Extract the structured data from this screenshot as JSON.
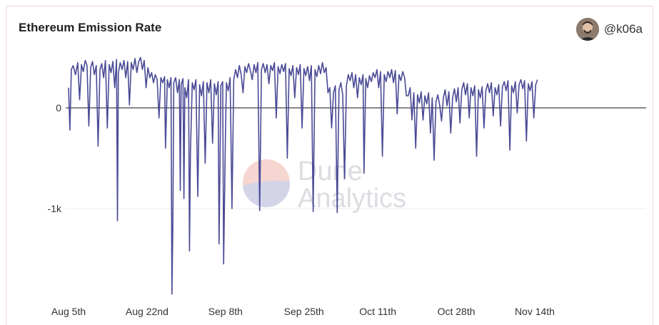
{
  "header": {
    "title": "Ethereum Emission Rate",
    "author": "@k06a"
  },
  "watermark": {
    "line1": "Dune",
    "line2": "Analytics"
  },
  "colors": {
    "series": "#4a4a96",
    "zero_line": "#111111",
    "grid": "#ececec"
  },
  "chart_data": {
    "type": "line",
    "title": "Ethereum Emission Rate",
    "xlabel": "",
    "ylabel": "",
    "ylim": [
      -1850,
      520
    ],
    "y_ticks": [
      0,
      -1000
    ],
    "y_tick_labels": [
      "0",
      "-1k"
    ],
    "x_ticks": [
      "Aug 5th",
      "Aug 22nd",
      "Sep 8th",
      "Sep 25th",
      "Oct 11th",
      "Oct 28th",
      "Nov 14th"
    ],
    "x_tick_days": [
      0,
      17,
      34,
      51,
      67,
      84,
      101
    ],
    "grid": true,
    "legend": "none",
    "series": [
      {
        "points": [
          [
            0.0,
            200
          ],
          [
            0.3,
            -220
          ],
          [
            0.6,
            380
          ],
          [
            1.0,
            420
          ],
          [
            1.5,
            330
          ],
          [
            2.0,
            450
          ],
          [
            2.4,
            80
          ],
          [
            2.8,
            430
          ],
          [
            3.2,
            360
          ],
          [
            3.6,
            470
          ],
          [
            4.0,
            420
          ],
          [
            4.4,
            -180
          ],
          [
            4.8,
            400
          ],
          [
            5.2,
            460
          ],
          [
            5.6,
            330
          ],
          [
            6.0,
            420
          ],
          [
            6.4,
            -380
          ],
          [
            6.8,
            380
          ],
          [
            7.2,
            440
          ],
          [
            7.6,
            300
          ],
          [
            8.0,
            470
          ],
          [
            8.4,
            -200
          ],
          [
            8.8,
            430
          ],
          [
            9.2,
            350
          ],
          [
            9.6,
            460
          ],
          [
            10.0,
            200
          ],
          [
            10.4,
            480
          ],
          [
            10.6,
            -1120
          ],
          [
            10.8,
            350
          ],
          [
            11.2,
            450
          ],
          [
            11.6,
            380
          ],
          [
            12.0,
            470
          ],
          [
            12.4,
            300
          ],
          [
            12.8,
            460
          ],
          [
            13.2,
            30
          ],
          [
            13.6,
            450
          ],
          [
            14.0,
            380
          ],
          [
            14.4,
            490
          ],
          [
            14.8,
            350
          ],
          [
            15.2,
            460
          ],
          [
            15.6,
            500
          ],
          [
            16.0,
            380
          ],
          [
            16.4,
            470
          ],
          [
            16.8,
            200
          ],
          [
            17.2,
            400
          ],
          [
            17.6,
            300
          ],
          [
            18.0,
            350
          ],
          [
            18.4,
            250
          ],
          [
            18.8,
            330
          ],
          [
            19.2,
            280
          ],
          [
            19.6,
            -100
          ],
          [
            20.0,
            300
          ],
          [
            20.4,
            250
          ],
          [
            20.8,
            310
          ],
          [
            21.0,
            -400
          ],
          [
            21.4,
            280
          ],
          [
            21.8,
            200
          ],
          [
            22.2,
            300
          ],
          [
            22.4,
            -1850
          ],
          [
            22.6,
            -1150
          ],
          [
            22.8,
            250
          ],
          [
            23.2,
            300
          ],
          [
            23.6,
            150
          ],
          [
            24.0,
            280
          ],
          [
            24.2,
            -820
          ],
          [
            24.4,
            230
          ],
          [
            24.8,
            290
          ],
          [
            25.0,
            -900
          ],
          [
            25.2,
            200
          ],
          [
            25.6,
            100
          ],
          [
            26.0,
            280
          ],
          [
            26.2,
            -1420
          ],
          [
            26.4,
            -450
          ],
          [
            26.8,
            250
          ],
          [
            27.2,
            180
          ],
          [
            27.6,
            280
          ],
          [
            28.0,
            -880
          ],
          [
            28.4,
            230
          ],
          [
            28.8,
            120
          ],
          [
            29.2,
            260
          ],
          [
            29.6,
            -550
          ],
          [
            30.0,
            250
          ],
          [
            30.4,
            150
          ],
          [
            30.8,
            280
          ],
          [
            31.2,
            -350
          ],
          [
            31.6,
            240
          ],
          [
            32.0,
            130
          ],
          [
            32.4,
            260
          ],
          [
            32.6,
            -1350
          ],
          [
            32.8,
            -600
          ],
          [
            33.0,
            220
          ],
          [
            33.4,
            260
          ],
          [
            33.6,
            -1550
          ],
          [
            34.0,
            -250
          ],
          [
            34.2,
            250
          ],
          [
            34.6,
            170
          ],
          [
            35.0,
            300
          ],
          [
            35.4,
            -1000
          ],
          [
            35.8,
            280
          ],
          [
            36.2,
            380
          ],
          [
            36.6,
            300
          ],
          [
            37.0,
            420
          ],
          [
            37.4,
            330
          ],
          [
            37.8,
            150
          ],
          [
            38.2,
            410
          ],
          [
            38.6,
            350
          ],
          [
            39.0,
            440
          ],
          [
            39.4,
            370
          ],
          [
            39.8,
            280
          ],
          [
            40.2,
            430
          ],
          [
            40.6,
            350
          ],
          [
            41.0,
            450
          ],
          [
            41.4,
            -1020
          ],
          [
            41.8,
            380
          ],
          [
            42.2,
            440
          ],
          [
            42.6,
            350
          ],
          [
            43.0,
            430
          ],
          [
            43.4,
            240
          ],
          [
            43.8,
            420
          ],
          [
            44.2,
            370
          ],
          [
            44.6,
            450
          ],
          [
            45.0,
            -100
          ],
          [
            45.4,
            410
          ],
          [
            45.8,
            340
          ],
          [
            46.2,
            430
          ],
          [
            46.6,
            360
          ],
          [
            47.0,
            440
          ],
          [
            47.4,
            -500
          ],
          [
            47.8,
            390
          ],
          [
            48.2,
            320
          ],
          [
            48.6,
            420
          ],
          [
            49.0,
            100
          ],
          [
            49.4,
            400
          ],
          [
            49.8,
            330
          ],
          [
            50.2,
            430
          ],
          [
            50.6,
            -200
          ],
          [
            51.0,
            390
          ],
          [
            51.4,
            320
          ],
          [
            51.8,
            410
          ],
          [
            52.2,
            270
          ],
          [
            52.6,
            420
          ],
          [
            53.0,
            -1030
          ],
          [
            53.4,
            380
          ],
          [
            53.8,
            310
          ],
          [
            54.2,
            420
          ],
          [
            54.6,
            340
          ],
          [
            55.0,
            450
          ],
          [
            55.4,
            350
          ],
          [
            55.8,
            400
          ],
          [
            56.2,
            150
          ],
          [
            56.6,
            200
          ],
          [
            57.0,
            -200
          ],
          [
            57.4,
            150
          ],
          [
            57.8,
            220
          ],
          [
            58.2,
            -1040
          ],
          [
            58.6,
            180
          ],
          [
            59.0,
            250
          ],
          [
            59.4,
            130
          ],
          [
            59.8,
            -700
          ],
          [
            60.2,
            220
          ],
          [
            60.6,
            330
          ],
          [
            61.0,
            270
          ],
          [
            61.4,
            350
          ],
          [
            61.8,
            200
          ],
          [
            62.2,
            330
          ],
          [
            62.6,
            100
          ],
          [
            63.0,
            300
          ],
          [
            63.4,
            230
          ],
          [
            63.8,
            330
          ],
          [
            64.0,
            -650
          ],
          [
            64.4,
            290
          ],
          [
            64.8,
            200
          ],
          [
            65.2,
            320
          ],
          [
            65.6,
            260
          ],
          [
            66.0,
            350
          ],
          [
            66.4,
            300
          ],
          [
            66.8,
            380
          ],
          [
            67.2,
            200
          ],
          [
            67.6,
            360
          ],
          [
            68.0,
            -480
          ],
          [
            68.4,
            330
          ],
          [
            68.8,
            260
          ],
          [
            69.2,
            360
          ],
          [
            69.6,
            300
          ],
          [
            70.0,
            380
          ],
          [
            70.4,
            250
          ],
          [
            70.8,
            370
          ],
          [
            71.2,
            -60
          ],
          [
            71.6,
            330
          ],
          [
            72.0,
            270
          ],
          [
            72.4,
            360
          ],
          [
            72.8,
            300
          ],
          [
            73.2,
            120
          ],
          [
            73.6,
            120
          ],
          [
            74.0,
            200
          ],
          [
            74.4,
            -120
          ],
          [
            74.8,
            150
          ],
          [
            75.2,
            -400
          ],
          [
            75.6,
            130
          ],
          [
            76.0,
            50
          ],
          [
            76.4,
            160
          ],
          [
            76.8,
            -120
          ],
          [
            77.2,
            120
          ],
          [
            77.6,
            40
          ],
          [
            78.0,
            150
          ],
          [
            78.4,
            -250
          ],
          [
            78.8,
            100
          ],
          [
            79.2,
            -520
          ],
          [
            79.6,
            60
          ],
          [
            80.0,
            130
          ],
          [
            80.4,
            30
          ],
          [
            80.8,
            -130
          ],
          [
            81.2,
            100
          ],
          [
            81.6,
            180
          ],
          [
            82.0,
            20
          ],
          [
            82.4,
            160
          ],
          [
            82.8,
            -250
          ],
          [
            83.2,
            100
          ],
          [
            83.6,
            190
          ],
          [
            84.0,
            60
          ],
          [
            84.4,
            200
          ],
          [
            84.8,
            -150
          ],
          [
            85.2,
            180
          ],
          [
            85.6,
            250
          ],
          [
            86.0,
            130
          ],
          [
            86.4,
            240
          ],
          [
            86.8,
            -100
          ],
          [
            87.2,
            200
          ],
          [
            87.6,
            120
          ],
          [
            88.0,
            220
          ],
          [
            88.4,
            -480
          ],
          [
            88.8,
            180
          ],
          [
            89.2,
            100
          ],
          [
            89.6,
            210
          ],
          [
            90.0,
            -200
          ],
          [
            90.4,
            170
          ],
          [
            90.8,
            240
          ],
          [
            91.2,
            150
          ],
          [
            91.6,
            250
          ],
          [
            92.0,
            -80
          ],
          [
            92.4,
            200
          ],
          [
            92.8,
            130
          ],
          [
            93.2,
            230
          ],
          [
            93.6,
            -180
          ],
          [
            94.0,
            210
          ],
          [
            94.4,
            260
          ],
          [
            94.8,
            170
          ],
          [
            95.2,
            270
          ],
          [
            95.6,
            -420
          ],
          [
            96.0,
            220
          ],
          [
            96.4,
            150
          ],
          [
            96.8,
            260
          ],
          [
            97.2,
            -50
          ],
          [
            97.6,
            230
          ],
          [
            98.0,
            280
          ],
          [
            98.4,
            190
          ],
          [
            98.8,
            270
          ],
          [
            99.2,
            -330
          ],
          [
            99.6,
            240
          ],
          [
            100.0,
            170
          ],
          [
            100.4,
            260
          ],
          [
            100.8,
            -100
          ],
          [
            101.2,
            230
          ],
          [
            101.6,
            280
          ]
        ]
      }
    ]
  }
}
